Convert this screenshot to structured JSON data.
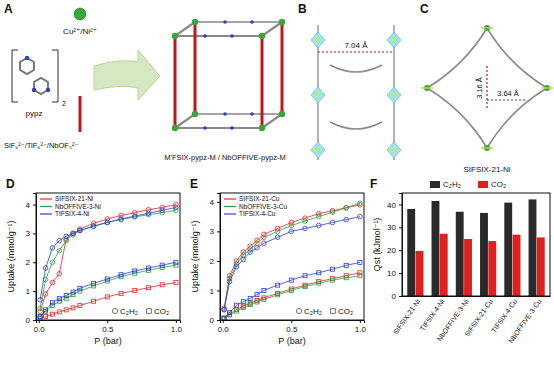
{
  "diagram": {
    "A": {
      "label": "A",
      "metal": "Cu²⁺/Ni²⁺",
      "ligand": "pypz",
      "ligand_count": 2,
      "anion": "SiF₆²⁻/TiF₆²⁻/NbOF₅²⁻",
      "product": "M'FSIX-pypz-M / NbOFFIVE-pypz-M"
    },
    "B": {
      "label": "B",
      "distance": "7.04 Å"
    },
    "C": {
      "label": "C",
      "distances": [
        "3.16 Å",
        "3.64 Å"
      ],
      "caption": "SIFSIX-21-Ni"
    }
  },
  "chart_data": [
    {
      "type": "line",
      "title": "D",
      "x_label": "P (bar)",
      "y_label": "Uptake (mmolg⁻¹)",
      "x": [
        0.01,
        0.05,
        0.1,
        0.15,
        0.2,
        0.25,
        0.3,
        0.4,
        0.5,
        0.6,
        0.7,
        0.8,
        0.9,
        1.0
      ],
      "xlim": [
        -0.02,
        1.03
      ],
      "xticks": [
        {
          "value": 0,
          "label": "0.0"
        },
        {
          "value": 0.5,
          "label": "0.5"
        },
        {
          "value": 1,
          "label": "1.0"
        }
      ],
      "ylim": [
        0,
        4.4
      ],
      "yticks": [
        0,
        1,
        2,
        3,
        4
      ],
      "legend": "upper left",
      "marker_legend": [
        {
          "label": "C₂H₂",
          "marker": "circle"
        },
        {
          "label": "CO₂",
          "marker": "square"
        }
      ],
      "series": [
        {
          "name": "SIFSIX-21-Ni",
          "color": "#e8262a",
          "marker": "circle",
          "values": [
            0.3,
            0.9,
            1.3,
            1.6,
            2.8,
            3.0,
            3.15,
            3.35,
            3.5,
            3.62,
            3.72,
            3.82,
            3.9,
            4.0
          ]
        },
        {
          "name": "NbOFFIVE-3-Ni",
          "color": "#2e9e3b",
          "marker": "circle",
          "values": [
            0.4,
            1.4,
            2.0,
            2.4,
            2.75,
            2.95,
            3.1,
            3.25,
            3.38,
            3.48,
            3.57,
            3.65,
            3.72,
            3.8
          ]
        },
        {
          "name": "TIFSIX-4-Ni",
          "color": "#2b3fd6",
          "marker": "circle",
          "values": [
            0.7,
            1.8,
            2.5,
            2.75,
            2.9,
            3.0,
            3.1,
            3.25,
            3.38,
            3.5,
            3.6,
            3.7,
            3.8,
            3.9
          ]
        },
        {
          "name": "SIFSIX-21-Ni",
          "color": "#e8262a",
          "marker": "square",
          "values": [
            0.05,
            0.12,
            0.2,
            0.28,
            0.35,
            0.42,
            0.5,
            0.65,
            0.8,
            0.92,
            1.02,
            1.12,
            1.22,
            1.3
          ]
        },
        {
          "name": "NbOFFIVE-3-Ni",
          "color": "#2e9e3b",
          "marker": "square",
          "values": [
            0.1,
            0.3,
            0.5,
            0.65,
            0.75,
            0.88,
            1.0,
            1.18,
            1.35,
            1.5,
            1.62,
            1.72,
            1.82,
            1.9
          ]
        },
        {
          "name": "TIFSIX-4-Ni",
          "color": "#2b3fd6",
          "marker": "square",
          "values": [
            0.12,
            0.35,
            0.6,
            0.75,
            0.85,
            0.97,
            1.1,
            1.27,
            1.42,
            1.57,
            1.7,
            1.8,
            1.9,
            2.0
          ]
        }
      ]
    },
    {
      "type": "line",
      "title": "E",
      "x_label": "P (bar)",
      "y_label": "Uptake (mmolg⁻¹)",
      "x": [
        0.01,
        0.05,
        0.1,
        0.15,
        0.2,
        0.25,
        0.3,
        0.4,
        0.5,
        0.6,
        0.7,
        0.8,
        0.9,
        1.0
      ],
      "xlim": [
        -0.02,
        1.03
      ],
      "xticks": [
        {
          "value": 0,
          "label": "0.0"
        },
        {
          "value": 0.5,
          "label": "0.5"
        },
        {
          "value": 1,
          "label": "1.0"
        }
      ],
      "ylim": [
        0,
        4.3
      ],
      "yticks": [
        0,
        1,
        2,
        3,
        4
      ],
      "legend": "upper left",
      "marker_legend": [
        {
          "label": "C₂H₂",
          "marker": "circle"
        },
        {
          "label": "CO₂",
          "marker": "square"
        }
      ],
      "series": [
        {
          "name": "SIFSIX-21-Cu",
          "color": "#e8262a",
          "marker": "circle",
          "values": [
            0.4,
            1.5,
            2.0,
            2.3,
            2.5,
            2.7,
            2.9,
            3.1,
            3.3,
            3.45,
            3.6,
            3.7,
            3.8,
            3.9
          ]
        },
        {
          "name": "NbOFFIVE-3-Cu",
          "color": "#2e9e3b",
          "marker": "circle",
          "values": [
            0.35,
            1.4,
            1.9,
            2.2,
            2.4,
            2.6,
            2.8,
            3.0,
            3.2,
            3.35,
            3.5,
            3.65,
            3.8,
            3.95
          ]
        },
        {
          "name": "TIFSIX-4-Cu",
          "color": "#2b3fd6",
          "marker": "circle",
          "values": [
            0.35,
            1.3,
            1.8,
            2.05,
            2.3,
            2.45,
            2.6,
            2.8,
            3.0,
            3.1,
            3.2,
            3.3,
            3.4,
            3.5
          ]
        },
        {
          "name": "SIFSIX-21-Cu",
          "color": "#e8262a",
          "marker": "square",
          "values": [
            0.05,
            0.2,
            0.35,
            0.47,
            0.57,
            0.66,
            0.75,
            0.9,
            1.05,
            1.18,
            1.3,
            1.4,
            1.5,
            1.6
          ]
        },
        {
          "name": "NbOFFIVE-3-Cu",
          "color": "#2e9e3b",
          "marker": "square",
          "values": [
            0.04,
            0.17,
            0.3,
            0.42,
            0.52,
            0.61,
            0.7,
            0.85,
            1.0,
            1.13,
            1.25,
            1.35,
            1.43,
            1.5
          ]
        },
        {
          "name": "TIFSIX-4-Cu",
          "color": "#2b3fd6",
          "marker": "square",
          "values": [
            0.07,
            0.25,
            0.5,
            0.62,
            0.73,
            0.86,
            1.0,
            1.18,
            1.35,
            1.5,
            1.6,
            1.72,
            1.85,
            1.95
          ]
        }
      ]
    },
    {
      "type": "bar",
      "title": "F",
      "y_label": "Qst (kJmol⁻¹)",
      "categories": [
        "SIFSIX-21-Ni",
        "TIFSIX-4-Ni",
        "NbOFFIVE-3-Ni",
        "SIFSIX-21-Cu",
        "TIFSIX-4-Cu",
        "NbOFFIVE-3-Cu"
      ],
      "ylim": [
        0,
        45
      ],
      "yticks": [
        0,
        10,
        20,
        30,
        40
      ],
      "legend": "top",
      "series": [
        {
          "name": "C₂H₂",
          "color": "#2a2a2a",
          "values": [
            38.0,
            41.5,
            36.8,
            36.3,
            40.8,
            42.2
          ]
        },
        {
          "name": "CO₂",
          "color": "#e02020",
          "values": [
            19.7,
            27.2,
            24.9,
            24.0,
            26.8,
            25.6
          ]
        }
      ]
    }
  ]
}
